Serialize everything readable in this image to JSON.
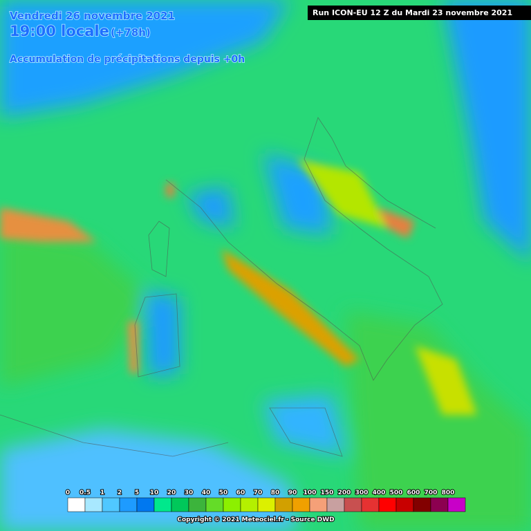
{
  "header": {
    "date": "Vendredi 26 novembre 2021",
    "time": "19:00 locale",
    "lead": "(+78h)",
    "product": "Accumulation de précipitations depuis +0h",
    "run": "Run ICON-EU 12 Z du Mardi 23 novembre 2021"
  },
  "legend": {
    "items": [
      {
        "label": "0",
        "color": "#ffffff"
      },
      {
        "label": "0.5",
        "color": "#a8e8ff"
      },
      {
        "label": "1",
        "color": "#50c8ff"
      },
      {
        "label": "2",
        "color": "#1e9bff"
      },
      {
        "label": "5",
        "color": "#0078f0"
      },
      {
        "label": "10",
        "color": "#00e88c"
      },
      {
        "label": "20",
        "color": "#00c85a"
      },
      {
        "label": "30",
        "color": "#3cb43c"
      },
      {
        "label": "40",
        "color": "#64dc28"
      },
      {
        "label": "50",
        "color": "#8cf000"
      },
      {
        "label": "60",
        "color": "#b4f000"
      },
      {
        "label": "70",
        "color": "#dcf000"
      },
      {
        "label": "80",
        "color": "#d2a000"
      },
      {
        "label": "90",
        "color": "#f0a000"
      },
      {
        "label": "100",
        "color": "#f5a078"
      },
      {
        "label": "150",
        "color": "#c8a0a0"
      },
      {
        "label": "200",
        "color": "#c85050"
      },
      {
        "label": "300",
        "color": "#e63232"
      },
      {
        "label": "400",
        "color": "#ff0000"
      },
      {
        "label": "500",
        "color": "#c80000"
      },
      {
        "label": "600",
        "color": "#820000"
      },
      {
        "label": "700",
        "color": "#8c0050"
      },
      {
        "label": "800",
        "color": "#c800c8"
      }
    ]
  },
  "footer": {
    "copyright": "Copyright © 2021 Meteociel.fr - Source DWD"
  }
}
